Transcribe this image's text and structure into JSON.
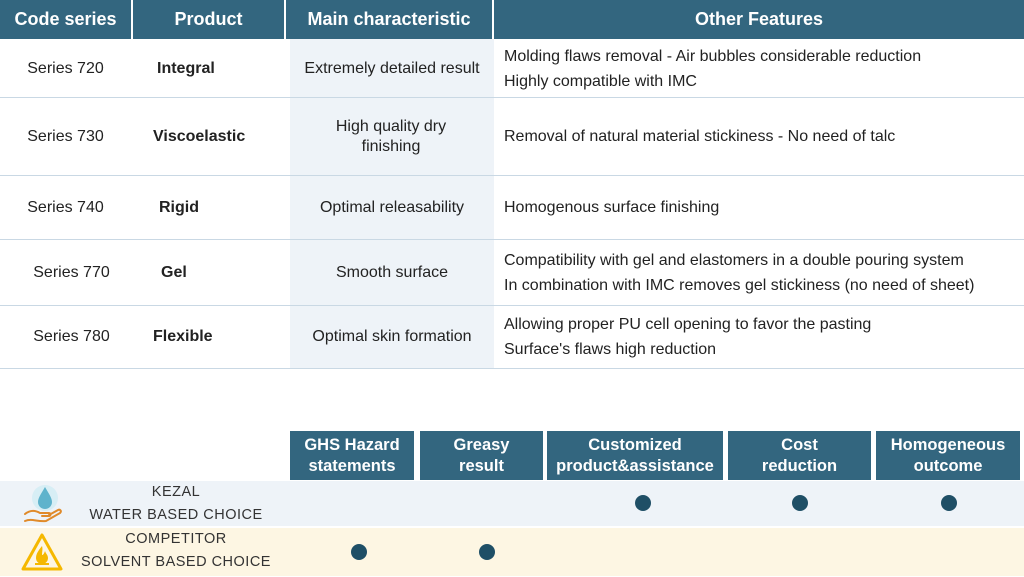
{
  "table": {
    "headers": [
      "Code series",
      "Product",
      "Main characteristic",
      "Other Features"
    ],
    "rows": [
      {
        "code": "Series 720",
        "product": "Integral",
        "main": "Extremely detailed result",
        "features": [
          "Molding flaws removal - Air bubbles considerable reduction",
          "Highly compatible with IMC"
        ]
      },
      {
        "code": "Series 730",
        "product": "Viscoelastic",
        "main": "High quality dry finishing",
        "features": [
          "Removal of natural material stickiness - No need of talc"
        ]
      },
      {
        "code": "Series 740",
        "product": "Rigid",
        "main": "Optimal releasability",
        "features": [
          "Homogenous surface finishing"
        ]
      },
      {
        "code": "Series 770",
        "product": "Gel",
        "main": "Smooth surface",
        "features": [
          "Compatibility with gel and elastomers in a double pouring system",
          "In combination with IMC removes gel stickiness (no need of sheet)"
        ]
      },
      {
        "code": "Series 780",
        "product": "Flexible",
        "main": "Optimal skin formation",
        "features": [
          "Allowing proper PU cell opening to favor the pasting",
          "Surface's flaws high reduction"
        ]
      }
    ]
  },
  "comparison": {
    "columns": [
      "GHS Hazard statements",
      "Greasy result",
      "Customized product&assistance",
      "Cost reduction",
      "Homogeneous outcome"
    ],
    "rows": [
      {
        "line1": "KEZAL",
        "line2": "WATER BASED CHOICE",
        "icon": "water-drop-hand-icon",
        "marks": [
          false,
          false,
          true,
          true,
          true
        ],
        "color": "#eef3f8"
      },
      {
        "line1": "COMPETITOR",
        "line2": "SOLVENT BASED CHOICE",
        "icon": "flammable-warning-icon",
        "marks": [
          true,
          true,
          false,
          false,
          false
        ],
        "color": "#fdf6e3"
      }
    ]
  },
  "colors": {
    "header": "#33667f",
    "dot": "#1f4f66",
    "warning": "#f5b800",
    "water": "#7ec4d8"
  }
}
